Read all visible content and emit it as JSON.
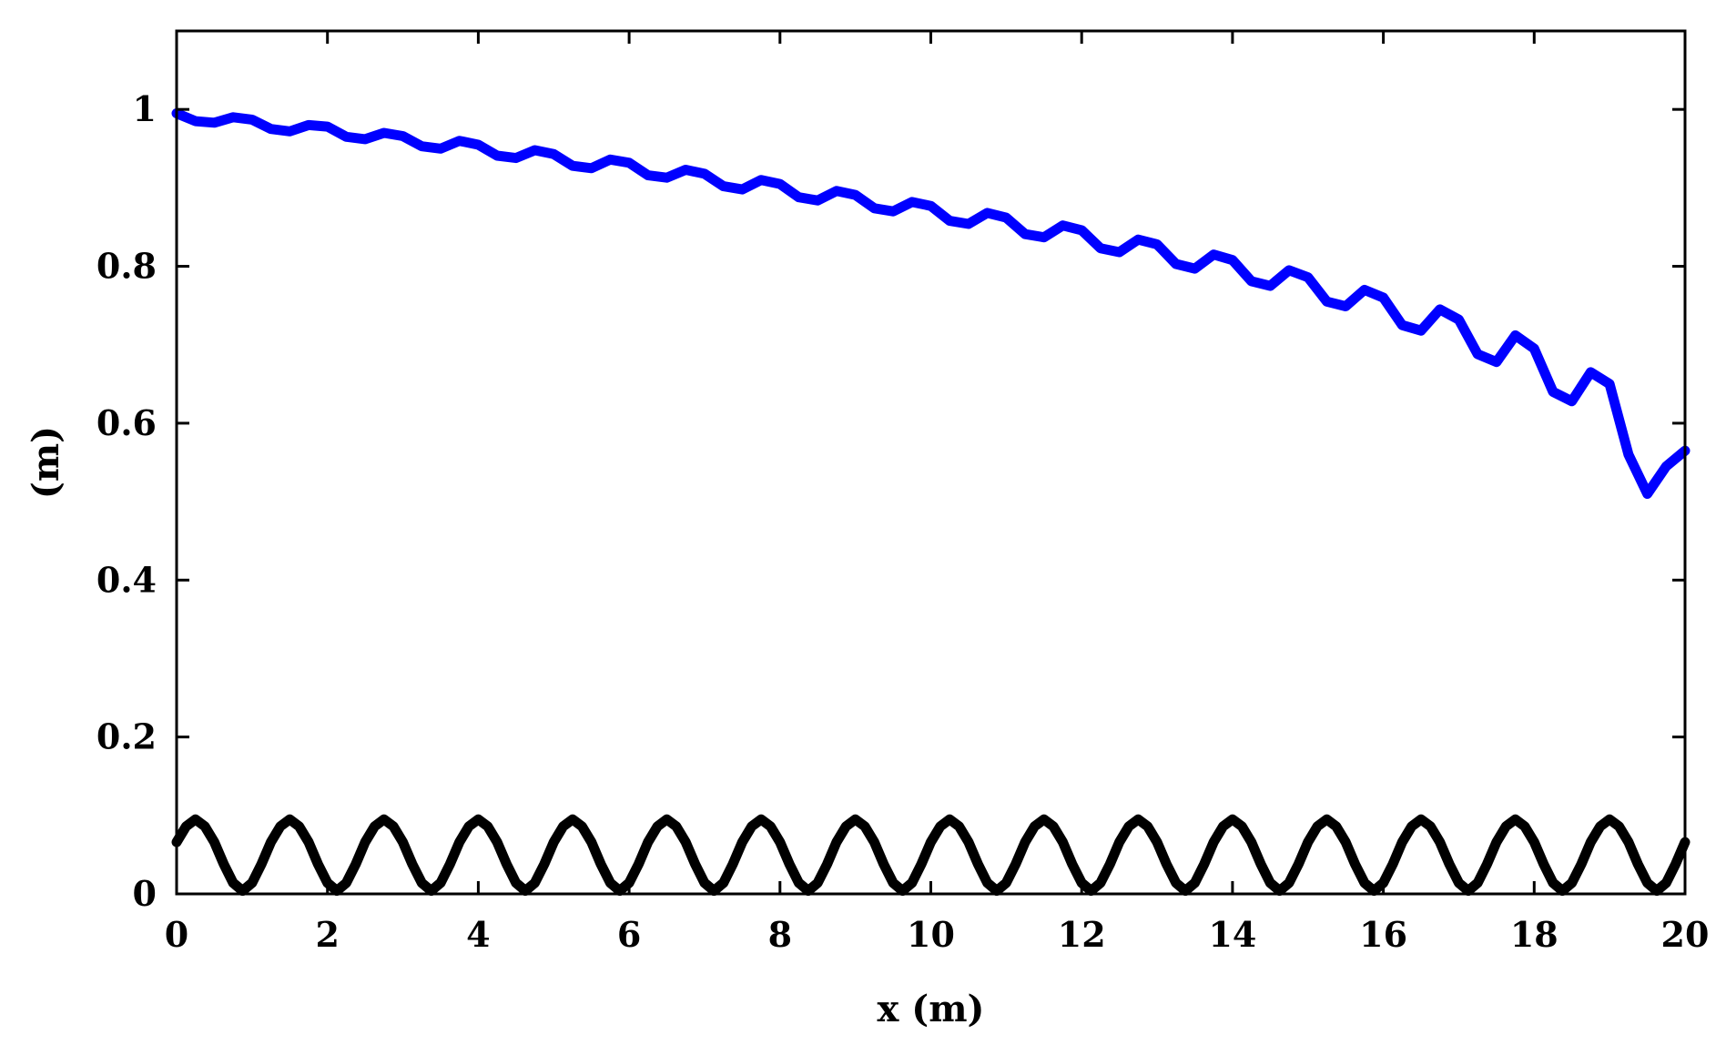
{
  "chart_data": {
    "type": "line",
    "title": "",
    "xlabel": "x (m)",
    "ylabel": "(m)",
    "xlim": [
      0,
      20
    ],
    "ylim": [
      0,
      1.1
    ],
    "grid": false,
    "legend": "none",
    "x_ticks": [
      0,
      2,
      4,
      6,
      8,
      10,
      12,
      14,
      16,
      18,
      20
    ],
    "x_tick_labels": [
      "0",
      "2",
      "4",
      "6",
      "8",
      "10",
      "12",
      "14",
      "16",
      "18",
      "20"
    ],
    "y_ticks": [
      0,
      0.2,
      0.4,
      0.6,
      0.8,
      1
    ],
    "y_tick_labels": [
      "0",
      "0.2",
      "0.4",
      "0.6",
      "0.8",
      "1"
    ],
    "series": [
      {
        "color": "#0000ff",
        "x": [
          0,
          0.25,
          0.5,
          0.75,
          1,
          1.25,
          1.5,
          1.75,
          2,
          2.25,
          2.5,
          2.75,
          3,
          3.25,
          3.5,
          3.75,
          4,
          4.25,
          4.5,
          4.75,
          5,
          5.25,
          5.5,
          5.75,
          6,
          6.25,
          6.5,
          6.75,
          7,
          7.25,
          7.5,
          7.75,
          8,
          8.25,
          8.5,
          8.75,
          9,
          9.25,
          9.5,
          9.75,
          10,
          10.25,
          10.5,
          10.75,
          11,
          11.25,
          11.5,
          11.75,
          12,
          12.25,
          12.5,
          12.75,
          13,
          13.25,
          13.5,
          13.75,
          14,
          14.25,
          14.5,
          14.75,
          15,
          15.25,
          15.5,
          15.75,
          16,
          16.25,
          16.5,
          16.75,
          17,
          17.25,
          17.5,
          17.75,
          18,
          18.25,
          18.5,
          18.75,
          19,
          19.25,
          19.5,
          19.75,
          20
        ],
        "y": [
          0.995,
          0.985,
          0.983,
          0.99,
          0.987,
          0.975,
          0.972,
          0.98,
          0.978,
          0.965,
          0.962,
          0.97,
          0.966,
          0.953,
          0.95,
          0.96,
          0.955,
          0.941,
          0.938,
          0.948,
          0.943,
          0.928,
          0.925,
          0.936,
          0.932,
          0.916,
          0.913,
          0.923,
          0.918,
          0.902,
          0.898,
          0.91,
          0.905,
          0.888,
          0.884,
          0.896,
          0.891,
          0.874,
          0.87,
          0.882,
          0.877,
          0.858,
          0.854,
          0.868,
          0.862,
          0.841,
          0.837,
          0.852,
          0.846,
          0.823,
          0.818,
          0.834,
          0.828,
          0.803,
          0.797,
          0.815,
          0.808,
          0.781,
          0.775,
          0.795,
          0.786,
          0.755,
          0.749,
          0.77,
          0.76,
          0.725,
          0.718,
          0.745,
          0.732,
          0.688,
          0.678,
          0.712,
          0.695,
          0.64,
          0.628,
          0.665,
          0.65,
          0.56,
          0.51,
          0.545,
          0.565
        ]
      },
      {
        "color": "#000000",
        "x": [
          0,
          0.125,
          0.25,
          0.375,
          0.5,
          0.625,
          0.75,
          0.875,
          1,
          1.125,
          1.25,
          1.375,
          1.5,
          1.625,
          1.75,
          1.875,
          2,
          2.125,
          2.25,
          2.375,
          2.5,
          2.625,
          2.75,
          2.875,
          3,
          3.125,
          3.25,
          3.375,
          3.5,
          3.625,
          3.75,
          3.875,
          4,
          4.125,
          4.25,
          4.375,
          4.5,
          4.625,
          4.75,
          4.875,
          5,
          5.125,
          5.25,
          5.375,
          5.5,
          5.625,
          5.75,
          5.875,
          6,
          6.125,
          6.25,
          6.375,
          6.5,
          6.625,
          6.75,
          6.875,
          7,
          7.125,
          7.25,
          7.375,
          7.5,
          7.625,
          7.75,
          7.875,
          8,
          8.125,
          8.25,
          8.375,
          8.5,
          8.625,
          8.75,
          8.875,
          9,
          9.125,
          9.25,
          9.375,
          9.5,
          9.625,
          9.75,
          9.875,
          10,
          10.125,
          10.25,
          10.375,
          10.5,
          10.625,
          10.75,
          10.875,
          11,
          11.125,
          11.25,
          11.375,
          11.5,
          11.625,
          11.75,
          11.875,
          12,
          12.125,
          12.25,
          12.375,
          12.5,
          12.625,
          12.75,
          12.875,
          13,
          13.125,
          13.25,
          13.375,
          13.5,
          13.625,
          13.75,
          13.875,
          14,
          14.125,
          14.25,
          14.375,
          14.5,
          14.625,
          14.75,
          14.875,
          15,
          15.125,
          15.25,
          15.375,
          15.5,
          15.625,
          15.75,
          15.875,
          16,
          16.125,
          16.25,
          16.375,
          16.5,
          16.625,
          16.75,
          16.875,
          17,
          17.125,
          17.25,
          17.375,
          17.5,
          17.625,
          17.75,
          17.875,
          18,
          18.125,
          18.25,
          18.375,
          18.5,
          18.625,
          18.75,
          18.875,
          19,
          19.125,
          19.25,
          19.375,
          19.5,
          19.625,
          19.75,
          19.875,
          20
        ],
        "y": [
          0.066,
          0.086,
          0.095,
          0.086,
          0.066,
          0.038,
          0.014,
          0.004,
          0.014,
          0.038,
          0.066,
          0.086,
          0.095,
          0.086,
          0.066,
          0.038,
          0.014,
          0.004,
          0.014,
          0.038,
          0.066,
          0.086,
          0.095,
          0.086,
          0.066,
          0.038,
          0.014,
          0.004,
          0.014,
          0.038,
          0.066,
          0.086,
          0.095,
          0.086,
          0.066,
          0.038,
          0.014,
          0.004,
          0.014,
          0.038,
          0.066,
          0.086,
          0.095,
          0.086,
          0.066,
          0.038,
          0.014,
          0.004,
          0.014,
          0.038,
          0.066,
          0.086,
          0.095,
          0.086,
          0.066,
          0.038,
          0.014,
          0.004,
          0.014,
          0.038,
          0.066,
          0.086,
          0.095,
          0.086,
          0.066,
          0.038,
          0.014,
          0.004,
          0.014,
          0.038,
          0.066,
          0.086,
          0.095,
          0.086,
          0.066,
          0.038,
          0.014,
          0.004,
          0.014,
          0.038,
          0.066,
          0.086,
          0.095,
          0.086,
          0.066,
          0.038,
          0.014,
          0.004,
          0.014,
          0.038,
          0.066,
          0.086,
          0.095,
          0.086,
          0.066,
          0.038,
          0.014,
          0.004,
          0.014,
          0.038,
          0.066,
          0.086,
          0.095,
          0.086,
          0.066,
          0.038,
          0.014,
          0.004,
          0.014,
          0.038,
          0.066,
          0.086,
          0.095,
          0.086,
          0.066,
          0.038,
          0.014,
          0.004,
          0.014,
          0.038,
          0.066,
          0.086,
          0.095,
          0.086,
          0.066,
          0.038,
          0.014,
          0.004,
          0.014,
          0.038,
          0.066,
          0.086,
          0.095,
          0.086,
          0.066,
          0.038,
          0.014,
          0.004,
          0.014,
          0.038,
          0.066,
          0.086,
          0.095,
          0.086,
          0.066,
          0.038,
          0.014,
          0.004,
          0.014,
          0.038,
          0.066,
          0.086,
          0.095,
          0.086,
          0.066,
          0.038,
          0.014,
          0.004,
          0.014,
          0.038,
          0.066
        ]
      }
    ]
  }
}
